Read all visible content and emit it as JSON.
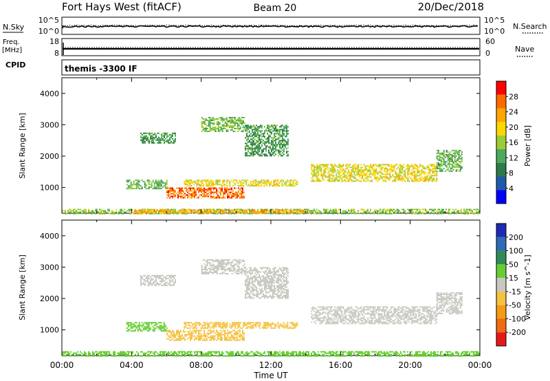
{
  "header": {
    "radar": "Fort Hays West (fitACF)",
    "beam": "Beam 20",
    "date": "20/Dec/2018"
  },
  "top_panels": {
    "nsky": {
      "label": "N.Sky",
      "ticks": [
        "10^5",
        "10^0"
      ],
      "right_ticks": [
        "10^5",
        "10^0"
      ],
      "right_label": "N.Search"
    },
    "freq": {
      "label_line1": "Freq.",
      "label_line2": "[MHz]",
      "ticks": [
        "18",
        "8"
      ],
      "right_ticks": [
        "60",
        "0"
      ],
      "right_label": "Nave"
    },
    "cpid": {
      "label": "CPID",
      "text": "themis -3300 IF"
    }
  },
  "x_axis": {
    "label": "Time UT",
    "ticks": [
      "00:00",
      "04:00",
      "08:00",
      "12:00",
      "16:00",
      "20:00",
      "00:00"
    ]
  },
  "power_panel": {
    "ylabel": "Slant Range [km]",
    "yticks": [
      "1000",
      "2000",
      "3000",
      "4000"
    ],
    "colorbar_label": "Power [dB]",
    "colorbar_ticks": [
      "28",
      "24",
      "20",
      "16",
      "12",
      "8",
      "4"
    ]
  },
  "velocity_panel": {
    "ylabel": "Slant Range [km]",
    "yticks": [
      "1000",
      "2000",
      "3000",
      "4000"
    ],
    "colorbar_label": "Velocity [m s^-1]",
    "colorbar_ticks": [
      "200",
      "100",
      "50",
      "15",
      "-15",
      "-50",
      "-100",
      "-200"
    ]
  },
  "colors": {
    "power_scale": [
      "#0000ff",
      "#1f5aa8",
      "#2e7a4a",
      "#4caa5a",
      "#9acd32",
      "#ffd700",
      "#ffa500",
      "#ff6a00",
      "#ff0000"
    ],
    "velocity_scale": [
      "#1e2ab4",
      "#2d6bb6",
      "#2e8b57",
      "#66cd33",
      "#c8c8c0",
      "#f5c242",
      "#f59b15",
      "#f06a10",
      "#e61919"
    ]
  },
  "chart_data": [
    {
      "type": "heatmap",
      "title": "Power [dB]",
      "xlabel": "Time UT",
      "ylabel": "Slant Range [km]",
      "xlim": [
        "00:00",
        "24:00"
      ],
      "ylim": [
        180,
        4500
      ],
      "zlim": [
        0,
        30
      ],
      "regions": [
        {
          "t0": 0.0,
          "t1": 24.0,
          "r0": 180,
          "r1": 320,
          "value": 14
        },
        {
          "t0": 4.0,
          "t1": 14.2,
          "r0": 200,
          "r1": 300,
          "value": 22
        },
        {
          "t0": 3.7,
          "t1": 6.0,
          "r0": 950,
          "r1": 1250,
          "value": 12
        },
        {
          "t0": 6.0,
          "t1": 10.5,
          "r0": 650,
          "r1": 1000,
          "value": 26
        },
        {
          "t0": 7.0,
          "t1": 13.5,
          "r0": 1050,
          "r1": 1250,
          "value": 18
        },
        {
          "t0": 4.5,
          "t1": 6.5,
          "r0": 2400,
          "r1": 2750,
          "value": 10
        },
        {
          "t0": 8.0,
          "t1": 10.5,
          "r0": 2800,
          "r1": 3250,
          "value": 13
        },
        {
          "t0": 10.5,
          "t1": 13.0,
          "r0": 2000,
          "r1": 3000,
          "value": 10
        },
        {
          "t0": 14.3,
          "t1": 21.5,
          "r0": 1200,
          "r1": 1750,
          "value": 18
        },
        {
          "t0": 21.5,
          "t1": 23.0,
          "r0": 1500,
          "r1": 2200,
          "value": 12
        }
      ]
    },
    {
      "type": "heatmap",
      "title": "Velocity [m s^-1]",
      "xlabel": "Time UT",
      "ylabel": "Slant Range [km]",
      "xlim": [
        "00:00",
        "24:00"
      ],
      "ylim": [
        180,
        4500
      ],
      "zlim": [
        -200,
        200
      ],
      "regions": [
        {
          "t0": 0.0,
          "t1": 24.0,
          "r0": 180,
          "r1": 320,
          "value": 30
        },
        {
          "t0": 3.7,
          "t1": 6.0,
          "r0": 950,
          "r1": 1250,
          "value": 30
        },
        {
          "t0": 6.0,
          "t1": 10.5,
          "r0": 650,
          "r1": 1000,
          "value": -40
        },
        {
          "t0": 7.0,
          "t1": 13.5,
          "r0": 1050,
          "r1": 1250,
          "value": -40
        },
        {
          "t0": 4.5,
          "t1": 6.5,
          "r0": 2400,
          "r1": 2750,
          "value": 0
        },
        {
          "t0": 8.0,
          "t1": 10.5,
          "r0": 2800,
          "r1": 3250,
          "value": 20
        },
        {
          "t0": 10.5,
          "t1": 13.0,
          "r0": 2000,
          "r1": 3000,
          "value": 20
        },
        {
          "t0": 14.3,
          "t1": 21.5,
          "r0": 1200,
          "r1": 1750,
          "value": 0
        },
        {
          "t0": 21.5,
          "t1": 23.0,
          "r0": 1500,
          "r1": 2200,
          "value": 0
        }
      ]
    }
  ]
}
